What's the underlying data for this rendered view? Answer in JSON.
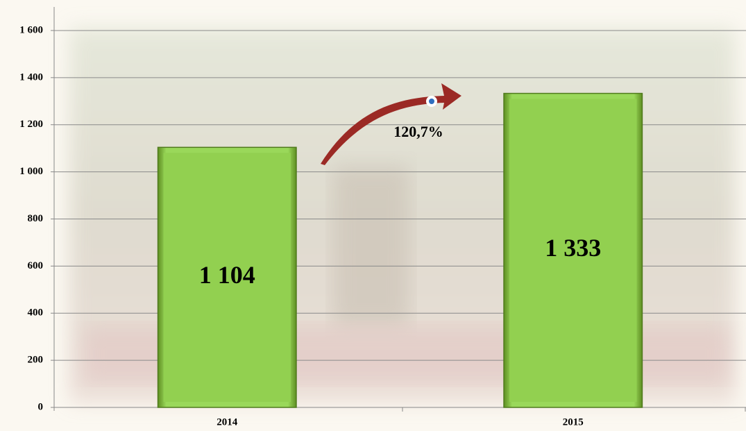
{
  "chart_data": {
    "type": "bar",
    "categories": [
      "2014",
      "2015"
    ],
    "values": [
      1104,
      1333
    ],
    "value_labels": [
      "1 104",
      "1 333"
    ],
    "color": "#92d050",
    "annotation": "120,7%",
    "ylim": [
      0,
      1700
    ],
    "yticks": [
      0,
      200,
      400,
      600,
      800,
      {
        "value": 1000,
        "label": "1 000"
      },
      {
        "value": 1200,
        "label": "1 200"
      },
      {
        "value": 1400,
        "label": "1 400"
      },
      {
        "value": 1600,
        "label": "1 600"
      }
    ],
    "grid": true
  }
}
